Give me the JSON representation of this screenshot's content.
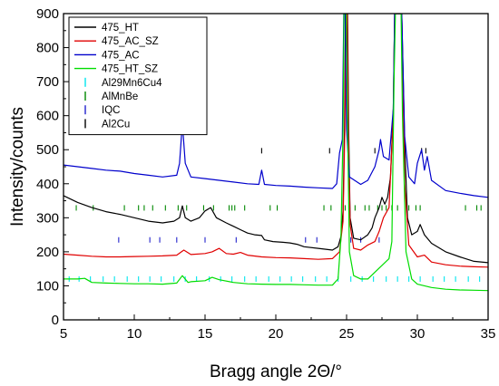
{
  "chart_data": {
    "type": "line",
    "title": "",
    "xlabel": "Bragg angle 2Θ/°",
    "ylabel": "Intensity/counts",
    "xlim": [
      5,
      35
    ],
    "ylim": [
      0,
      900
    ],
    "xticks": [
      5,
      10,
      15,
      20,
      25,
      30,
      35
    ],
    "yticks": [
      0,
      100,
      200,
      300,
      400,
      500,
      600,
      700,
      800,
      900
    ],
    "legend_position": "top-left",
    "grid": false,
    "series": [
      {
        "name": "475_HT",
        "color": "#000000",
        "points": [
          [
            5,
            365
          ],
          [
            6,
            345
          ],
          [
            7,
            330
          ],
          [
            8,
            318
          ],
          [
            9,
            310
          ],
          [
            10,
            300
          ],
          [
            11,
            290
          ],
          [
            12,
            285
          ],
          [
            12.8,
            290
          ],
          [
            13.2,
            300
          ],
          [
            13.4,
            335
          ],
          [
            13.6,
            300
          ],
          [
            14,
            290
          ],
          [
            14.6,
            300
          ],
          [
            15,
            320
          ],
          [
            15.4,
            330
          ],
          [
            15.8,
            300
          ],
          [
            16.5,
            285
          ],
          [
            17,
            275
          ],
          [
            17.5,
            265
          ],
          [
            18,
            255
          ],
          [
            18.5,
            250
          ],
          [
            19,
            248
          ],
          [
            19.2,
            235
          ],
          [
            19.8,
            230
          ],
          [
            20.5,
            228
          ],
          [
            21,
            226
          ],
          [
            21.5,
            222
          ],
          [
            22,
            215
          ],
          [
            23,
            210
          ],
          [
            24,
            205
          ],
          [
            24.4,
            215
          ],
          [
            24.6,
            245
          ],
          [
            24.75,
            320
          ],
          [
            24.85,
            560
          ],
          [
            24.93,
            900
          ],
          [
            25.07,
            900
          ],
          [
            25.15,
            560
          ],
          [
            25.25,
            300
          ],
          [
            25.5,
            240
          ],
          [
            26,
            235
          ],
          [
            26.5,
            250
          ],
          [
            26.8,
            270
          ],
          [
            27,
            300
          ],
          [
            27.3,
            330
          ],
          [
            27.5,
            360
          ],
          [
            27.7,
            340
          ],
          [
            27.9,
            360
          ],
          [
            28.1,
            420
          ],
          [
            28.3,
            620
          ],
          [
            28.4,
            900
          ],
          [
            28.9,
            900
          ],
          [
            29.1,
            520
          ],
          [
            29.3,
            300
          ],
          [
            29.6,
            250
          ],
          [
            30,
            260
          ],
          [
            30.2,
            280
          ],
          [
            30.5,
            250
          ],
          [
            31,
            225
          ],
          [
            32,
            200
          ],
          [
            33,
            185
          ],
          [
            34,
            172
          ],
          [
            35,
            168
          ]
        ]
      },
      {
        "name": "475_AC_SZ",
        "color": "#e00000",
        "points": [
          [
            5,
            193
          ],
          [
            6,
            190
          ],
          [
            7,
            187
          ],
          [
            8,
            185
          ],
          [
            9,
            185
          ],
          [
            10,
            186
          ],
          [
            11,
            187
          ],
          [
            12,
            188
          ],
          [
            13,
            190
          ],
          [
            13.5,
            205
          ],
          [
            14,
            192
          ],
          [
            15,
            195
          ],
          [
            15.5,
            200
          ],
          [
            16,
            210
          ],
          [
            16.5,
            195
          ],
          [
            17,
            193
          ],
          [
            17.5,
            198
          ],
          [
            18,
            190
          ],
          [
            19,
            185
          ],
          [
            20,
            183
          ],
          [
            21,
            182
          ],
          [
            22,
            180
          ],
          [
            23,
            178
          ],
          [
            24,
            180
          ],
          [
            24.5,
            200
          ],
          [
            24.75,
            290
          ],
          [
            24.88,
            560
          ],
          [
            24.95,
            900
          ],
          [
            25.05,
            900
          ],
          [
            25.12,
            560
          ],
          [
            25.25,
            280
          ],
          [
            25.5,
            210
          ],
          [
            26,
            205
          ],
          [
            26.5,
            220
          ],
          [
            27,
            230
          ],
          [
            27.3,
            260
          ],
          [
            27.6,
            300
          ],
          [
            28,
            330
          ],
          [
            28.3,
            600
          ],
          [
            28.4,
            900
          ],
          [
            28.9,
            900
          ],
          [
            29.1,
            400
          ],
          [
            29.4,
            220
          ],
          [
            30,
            185
          ],
          [
            30.5,
            190
          ],
          [
            31,
            170
          ],
          [
            32,
            162
          ],
          [
            33,
            158
          ],
          [
            34,
            156
          ],
          [
            35,
            155
          ]
        ]
      },
      {
        "name": "475_AC",
        "color": "#0000cc",
        "points": [
          [
            5,
            455
          ],
          [
            6,
            450
          ],
          [
            7,
            445
          ],
          [
            8,
            440
          ],
          [
            9,
            437
          ],
          [
            10,
            430
          ],
          [
            11,
            425
          ],
          [
            12,
            420
          ],
          [
            13,
            425
          ],
          [
            13.2,
            460
          ],
          [
            13.4,
            578
          ],
          [
            13.6,
            460
          ],
          [
            14,
            420
          ],
          [
            15,
            415
          ],
          [
            16,
            410
          ],
          [
            17,
            405
          ],
          [
            18,
            400
          ],
          [
            18.8,
            398
          ],
          [
            19,
            440
          ],
          [
            19.2,
            398
          ],
          [
            20,
            395
          ],
          [
            21,
            393
          ],
          [
            22,
            390
          ],
          [
            23,
            388
          ],
          [
            24,
            386
          ],
          [
            24.3,
            400
          ],
          [
            24.5,
            490
          ],
          [
            24.7,
            530
          ],
          [
            24.8,
            900
          ],
          [
            24.9,
            900
          ],
          [
            25,
            560
          ],
          [
            25.2,
            420
          ],
          [
            26,
            398
          ],
          [
            26.5,
            410
          ],
          [
            27,
            450
          ],
          [
            27.3,
            500
          ],
          [
            27.4,
            530
          ],
          [
            27.6,
            480
          ],
          [
            28,
            470
          ],
          [
            28.3,
            620
          ],
          [
            28.4,
            900
          ],
          [
            28.9,
            900
          ],
          [
            29.1,
            540
          ],
          [
            29.4,
            420
          ],
          [
            29.8,
            400
          ],
          [
            30,
            460
          ],
          [
            30.3,
            500
          ],
          [
            30.5,
            440
          ],
          [
            30.7,
            480
          ],
          [
            31,
            410
          ],
          [
            32,
            380
          ],
          [
            33,
            372
          ],
          [
            34,
            365
          ],
          [
            35,
            360
          ]
        ]
      },
      {
        "name": "475_HT_SZ",
        "color": "#00dd00",
        "points": [
          [
            5,
            120
          ],
          [
            6,
            120
          ],
          [
            6.5,
            122
          ],
          [
            7,
            110
          ],
          [
            8,
            108
          ],
          [
            9,
            107
          ],
          [
            10,
            106
          ],
          [
            11,
            106
          ],
          [
            12,
            105
          ],
          [
            13,
            108
          ],
          [
            13.4,
            130
          ],
          [
            13.8,
            110
          ],
          [
            14,
            112
          ],
          [
            15,
            115
          ],
          [
            15.5,
            125
          ],
          [
            16,
            118
          ],
          [
            17,
            110
          ],
          [
            18,
            106
          ],
          [
            19,
            105
          ],
          [
            20,
            104
          ],
          [
            21,
            104
          ],
          [
            22,
            103
          ],
          [
            23,
            102
          ],
          [
            24,
            102
          ],
          [
            24.4,
            120
          ],
          [
            24.6,
            240
          ],
          [
            24.75,
            560
          ],
          [
            24.82,
            900
          ],
          [
            24.98,
            900
          ],
          [
            25.08,
            560
          ],
          [
            25.2,
            200
          ],
          [
            25.5,
            130
          ],
          [
            26,
            120
          ],
          [
            26.5,
            120
          ],
          [
            27,
            140
          ],
          [
            27.5,
            160
          ],
          [
            28,
            180
          ],
          [
            28.2,
            230
          ],
          [
            28.35,
            700
          ],
          [
            28.45,
            900
          ],
          [
            28.85,
            900
          ],
          [
            28.95,
            600
          ],
          [
            29.2,
            200
          ],
          [
            29.6,
            120
          ],
          [
            30,
            105
          ],
          [
            31,
            95
          ],
          [
            32,
            90
          ],
          [
            33,
            88
          ],
          [
            34,
            87
          ],
          [
            35,
            86
          ]
        ]
      }
    ],
    "reference_markers": [
      {
        "name": "Al29Mn6Cu4",
        "color": "#00e5ee",
        "baseline": 128,
        "height": 16,
        "x": [
          5.4,
          6.1,
          6.9,
          7.8,
          8.6,
          9.5,
          10.3,
          11.1,
          11.9,
          12.8,
          13.6,
          14.4,
          15.3,
          16.1,
          16.9,
          17.8,
          18.6,
          19.5,
          20.3,
          21.1,
          21.9,
          22.8,
          23.6,
          24.4,
          25.3,
          26.1,
          26.9,
          27.8,
          28.6,
          29.4,
          30.2,
          31.1,
          31.9,
          32.7,
          33.6,
          34.4
        ]
      },
      {
        "name": "AlMnBe",
        "color": "#008800",
        "baseline": 337,
        "height": 16,
        "x": [
          5.9,
          7.1,
          9.3,
          10.3,
          10.7,
          11.3,
          12.2,
          13.1,
          13.7,
          14.9,
          15.6,
          16.7,
          16.9,
          17.1,
          17.8,
          19.6,
          20.1,
          23.4,
          23.9,
          24.9,
          25.6,
          26.3,
          26.6,
          27.2,
          27.5,
          27.8,
          28.2,
          28.6,
          29.4,
          29.9,
          30.2,
          33.4,
          34.2,
          34.5
        ]
      },
      {
        "name": "IQC",
        "color": "#2222cc",
        "baseline": 243,
        "height": 16,
        "x": [
          8.9,
          11.1,
          11.8,
          13.0,
          15.0,
          17.2,
          22.1,
          22.9,
          25.3,
          26.0,
          27.3
        ]
      },
      {
        "name": "Al2Cu",
        "color": "#000000",
        "baseline": 505,
        "height": 16,
        "x": [
          19.0,
          23.8,
          27.0,
          30.3,
          30.6
        ]
      }
    ]
  }
}
